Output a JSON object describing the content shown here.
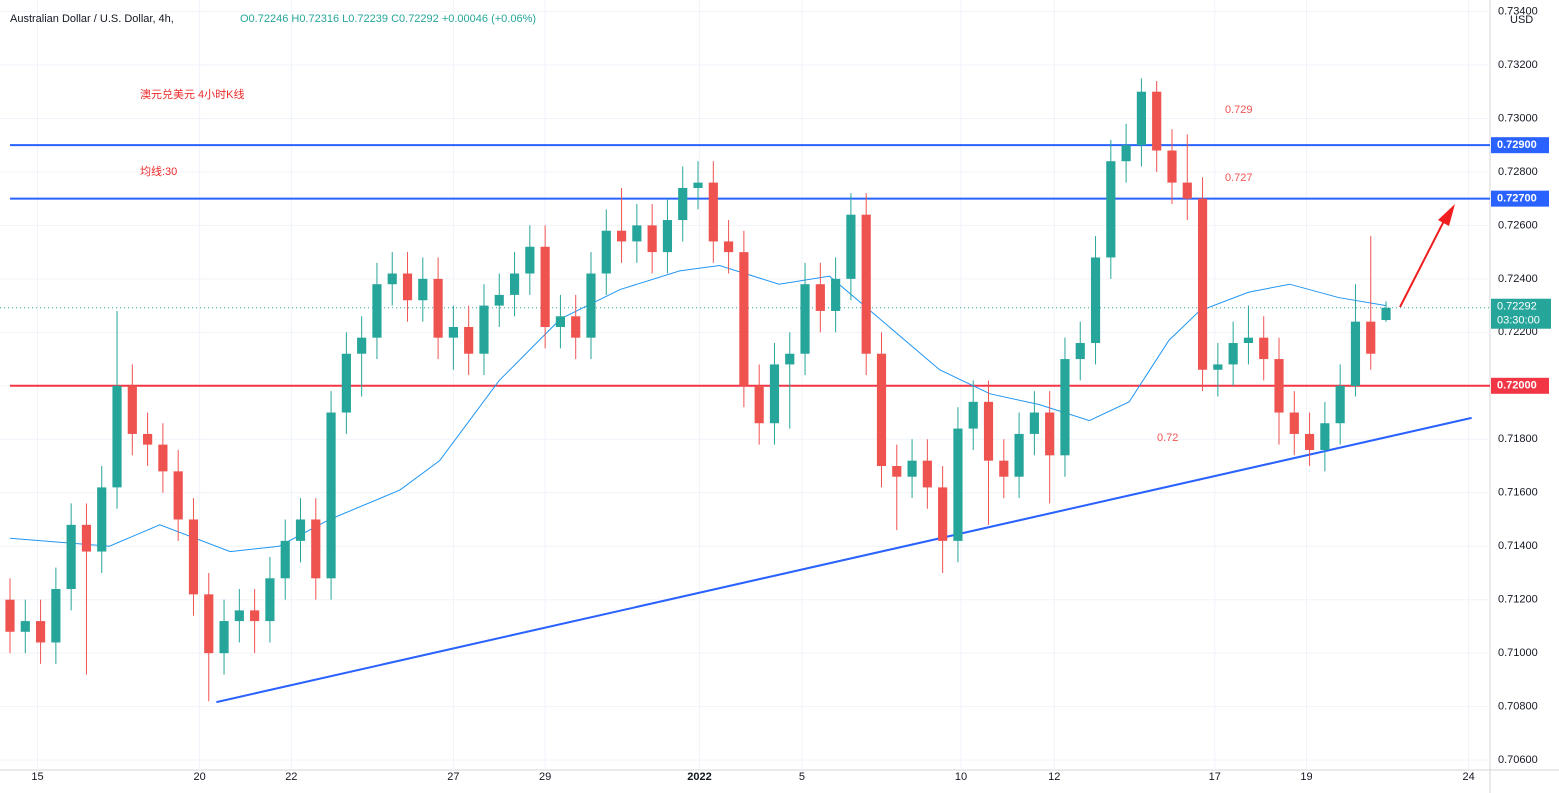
{
  "chart_data": {
    "type": "candlestick",
    "header": {
      "symbol": "Australian Dollar / U.S. Dollar, 4h,",
      "ohlc": "O0.72246 H0.72316 L0.72239 C0.72292 +0.00046 (+0.06%)"
    },
    "currency": "USD",
    "annotations": [
      {
        "text": "澳元兑美元 4小时K线",
        "color": "#ee2a2a"
      },
      {
        "text": "均线:30",
        "color": "#ee2a2a"
      },
      {
        "text": "0.729",
        "color": "#ef5350"
      },
      {
        "text": "0.727",
        "color": "#ef5350"
      },
      {
        "text": "0.72",
        "color": "#ef5350"
      }
    ],
    "colors": {
      "up": "#26a69a",
      "down": "#ef5350",
      "ma": "#2196f3"
    },
    "xlim": [
      -0.654,
      96.8
    ],
    "ylim": [
      0.70563,
      0.73443
    ],
    "xticks": [
      {
        "value": 1.8,
        "label": "15"
      },
      {
        "value": 12.4,
        "label": "20"
      },
      {
        "value": 18.4,
        "label": "22"
      },
      {
        "value": 29,
        "label": "27"
      },
      {
        "value": 35,
        "label": "29"
      },
      {
        "value": 45.1,
        "label": "2022"
      },
      {
        "value": 51.8,
        "label": "5"
      },
      {
        "value": 62.2,
        "label": "10"
      },
      {
        "value": 68.3,
        "label": "12"
      },
      {
        "value": 78.8,
        "label": "17"
      },
      {
        "value": 84.8,
        "label": "19"
      },
      {
        "value": 95.4,
        "label": "24"
      }
    ],
    "yticks": [
      {
        "value": 0.706,
        "label": "0.70600"
      },
      {
        "value": 0.708,
        "label": "0.70800"
      },
      {
        "value": 0.71,
        "label": "0.71000"
      },
      {
        "value": 0.712,
        "label": "0.71200"
      },
      {
        "value": 0.714,
        "label": "0.71400"
      },
      {
        "value": 0.716,
        "label": "0.71600"
      },
      {
        "value": 0.718,
        "label": "0.71800"
      },
      {
        "value": 0.72,
        "label": "0.72000"
      },
      {
        "value": 0.722,
        "label": "0.72200"
      },
      {
        "value": 0.724,
        "label": "0.72400"
      },
      {
        "value": 0.726,
        "label": "0.72600"
      },
      {
        "value": 0.728,
        "label": "0.72800"
      },
      {
        "value": 0.73,
        "label": "0.73000"
      },
      {
        "value": 0.732,
        "label": "0.73200"
      },
      {
        "value": 0.734,
        "label": "0.73400"
      }
    ],
    "grid": true,
    "open": [
      0.712,
      0.7108,
      0.7112,
      0.7104,
      0.7124,
      0.7148,
      0.7138,
      0.7162,
      0.72,
      0.7182,
      0.7178,
      0.7168,
      0.715,
      0.7122,
      0.71,
      0.7112,
      0.7116,
      0.7112,
      0.7128,
      0.7142,
      0.715,
      0.7128,
      0.719,
      0.7212,
      0.7218,
      0.7238,
      0.7242,
      0.7232,
      0.724,
      0.7218,
      0.7222,
      0.7212,
      0.723,
      0.7234,
      0.7242,
      0.7252,
      0.7222,
      0.7226,
      0.7218,
      0.7242,
      0.7258,
      0.7254,
      0.726,
      0.725,
      0.7262,
      0.7274,
      0.7276,
      0.7254,
      0.725,
      0.72,
      0.7186,
      0.7208,
      0.7212,
      0.7238,
      0.7228,
      0.724,
      0.7264,
      0.7212,
      0.717,
      0.7166,
      0.7172,
      0.7162,
      0.7142,
      0.7184,
      0.7194,
      0.7172,
      0.7166,
      0.7182,
      0.719,
      0.7174,
      0.721,
      0.7216,
      0.7248,
      0.7284,
      0.729,
      0.731,
      0.7288,
      0.7276,
      0.727,
      0.7206,
      0.7208,
      0.7216,
      0.7218,
      0.721,
      0.719,
      0.7182,
      0.7176,
      0.7186,
      0.72,
      0.7224,
      0.72246
    ],
    "high": [
      0.7128,
      0.712,
      0.712,
      0.7132,
      0.7156,
      0.7156,
      0.717,
      0.7228,
      0.7208,
      0.719,
      0.7186,
      0.7176,
      0.7158,
      0.713,
      0.712,
      0.7124,
      0.7124,
      0.7136,
      0.715,
      0.7158,
      0.7158,
      0.7198,
      0.722,
      0.7226,
      0.7246,
      0.725,
      0.725,
      0.7248,
      0.7248,
      0.723,
      0.723,
      0.7238,
      0.7242,
      0.725,
      0.726,
      0.726,
      0.7234,
      0.7234,
      0.725,
      0.7266,
      0.7274,
      0.7268,
      0.7268,
      0.727,
      0.7282,
      0.7284,
      0.7284,
      0.7262,
      0.7258,
      0.7208,
      0.7216,
      0.722,
      0.7246,
      0.7246,
      0.7248,
      0.7272,
      0.7272,
      0.722,
      0.7178,
      0.718,
      0.718,
      0.717,
      0.7192,
      0.7202,
      0.7202,
      0.718,
      0.719,
      0.7198,
      0.7198,
      0.7218,
      0.7224,
      0.7256,
      0.7292,
      0.7298,
      0.7315,
      0.7314,
      0.7296,
      0.7294,
      0.7278,
      0.7216,
      0.7224,
      0.723,
      0.7226,
      0.7218,
      0.7198,
      0.719,
      0.7194,
      0.7208,
      0.7238,
      0.7256,
      0.72316
    ],
    "low": [
      0.71,
      0.71,
      0.7096,
      0.7096,
      0.7116,
      0.7092,
      0.713,
      0.7154,
      0.7174,
      0.717,
      0.716,
      0.7142,
      0.7114,
      0.7082,
      0.7092,
      0.7104,
      0.71,
      0.7104,
      0.712,
      0.7134,
      0.712,
      0.712,
      0.7182,
      0.7196,
      0.721,
      0.723,
      0.7224,
      0.7224,
      0.721,
      0.7206,
      0.7204,
      0.7204,
      0.7222,
      0.7226,
      0.7234,
      0.7214,
      0.7214,
      0.721,
      0.721,
      0.7234,
      0.7246,
      0.7246,
      0.7242,
      0.7242,
      0.7254,
      0.7266,
      0.7246,
      0.7242,
      0.7192,
      0.7178,
      0.7178,
      0.7184,
      0.7204,
      0.722,
      0.722,
      0.7232,
      0.7204,
      0.7162,
      0.7146,
      0.7158,
      0.7154,
      0.713,
      0.7134,
      0.7176,
      0.7148,
      0.7158,
      0.7158,
      0.7174,
      0.7156,
      0.7166,
      0.7202,
      0.7208,
      0.724,
      0.7276,
      0.7282,
      0.728,
      0.7268,
      0.7262,
      0.7198,
      0.7196,
      0.72,
      0.7208,
      0.7202,
      0.7178,
      0.7174,
      0.717,
      0.7168,
      0.7178,
      0.7196,
      0.7206,
      0.72239
    ],
    "close": [
      0.7108,
      0.7112,
      0.7104,
      0.7124,
      0.7148,
      0.7138,
      0.7162,
      0.72,
      0.7182,
      0.7178,
      0.7168,
      0.715,
      0.7122,
      0.71,
      0.7112,
      0.7116,
      0.7112,
      0.7128,
      0.7142,
      0.715,
      0.7128,
      0.719,
      0.7212,
      0.7218,
      0.7238,
      0.7242,
      0.7232,
      0.724,
      0.7218,
      0.7222,
      0.7212,
      0.723,
      0.7234,
      0.7242,
      0.7252,
      0.7222,
      0.7226,
      0.7218,
      0.7242,
      0.7258,
      0.7254,
      0.726,
      0.725,
      0.7262,
      0.7274,
      0.7276,
      0.7254,
      0.725,
      0.72,
      0.7186,
      0.7208,
      0.7212,
      0.7238,
      0.7228,
      0.724,
      0.7264,
      0.7212,
      0.717,
      0.7166,
      0.7172,
      0.7162,
      0.7142,
      0.7184,
      0.7194,
      0.7172,
      0.7166,
      0.7182,
      0.719,
      0.7174,
      0.721,
      0.7216,
      0.7248,
      0.7284,
      0.729,
      0.731,
      0.7288,
      0.7276,
      0.727,
      0.7206,
      0.7208,
      0.7216,
      0.7218,
      0.721,
      0.719,
      0.7182,
      0.7176,
      0.7186,
      0.72,
      0.7224,
      0.7212,
      0.72292
    ],
    "ma": {
      "x": [
        0,
        6.5,
        9.8,
        14.4,
        17.6,
        20.9,
        25.5,
        28.1,
        32.0,
        36.0,
        39.9,
        43.8,
        46.4,
        50.3,
        53.6,
        56.9,
        60.8,
        64.1,
        67.3,
        70.6,
        73.2,
        75.8,
        77.8,
        81.0,
        83.7,
        86.9,
        90
      ],
      "values": [
        0.7143,
        0.714,
        0.7148,
        0.7138,
        0.714,
        0.715,
        0.7161,
        0.7172,
        0.7202,
        0.7225,
        0.7236,
        0.7243,
        0.7245,
        0.7238,
        0.7241,
        0.7225,
        0.7206,
        0.7197,
        0.7193,
        0.7187,
        0.7194,
        0.7217,
        0.7228,
        0.7235,
        0.7238,
        0.7233,
        0.723
      ]
    },
    "levels": [
      {
        "value": 0.729,
        "label": "0.72900",
        "color": "#2962ff"
      },
      {
        "value": 0.727,
        "label": "0.72700",
        "color": "#2962ff"
      },
      {
        "value": 0.72,
        "label": "0.72000",
        "color": "#f23645"
      }
    ],
    "trendline": {
      "x": [
        13.5,
        95.6
      ],
      "values": [
        0.70817,
        0.7188
      ],
      "color": "#2962ff"
    },
    "last_price": {
      "value": 0.72292,
      "label": "0.72292",
      "countdown": "03:30:00"
    }
  }
}
